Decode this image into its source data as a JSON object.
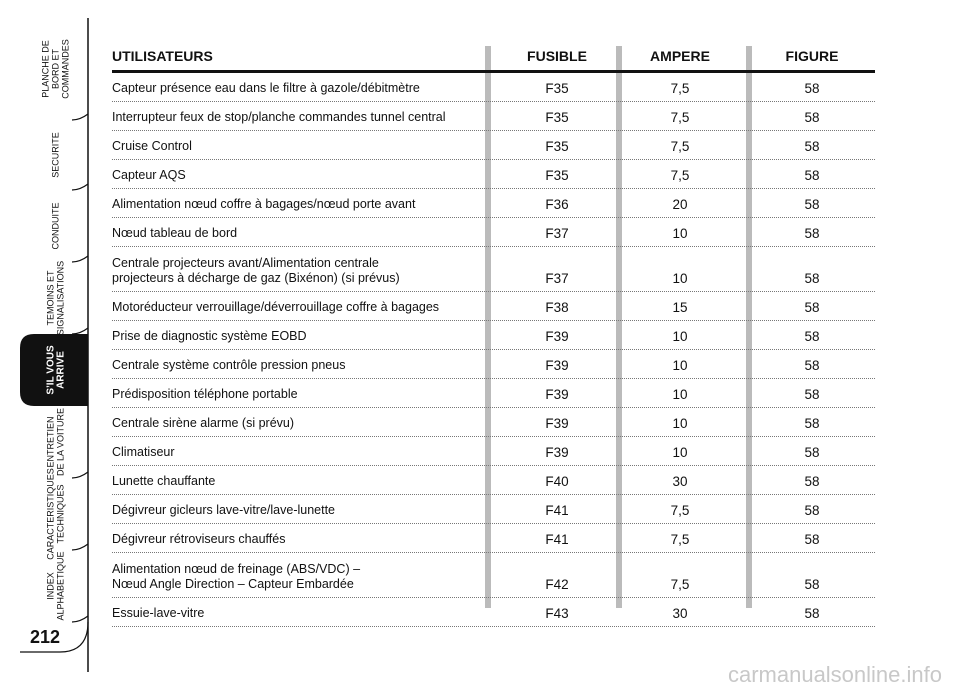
{
  "sidebar": {
    "tabs": [
      [
        "PLANCHE DE",
        "BORD ET",
        "COMMANDES"
      ],
      [
        "SECURITE"
      ],
      [
        "CONDUITE"
      ],
      [
        "TEMOINS ET",
        "SIGNALISATIONS"
      ],
      [
        "S’IL VOUS",
        "ARRIVE"
      ],
      [
        "ENTRETIEN",
        "DE LA VOITURE"
      ],
      [
        "CARACTERISTIQUES",
        "TECHNIQUES"
      ],
      [
        "INDEX",
        "ALPHABETIQUE"
      ]
    ],
    "active_tab": 4,
    "page_number": "212"
  },
  "table": {
    "headers": [
      "UTILISATEURS",
      "FUSIBLE",
      "AMPERE",
      "FIGURE"
    ],
    "rows": [
      [
        "Capteur présence eau dans le filtre à gazole/débitmètre",
        "F35",
        "7,5",
        "58"
      ],
      [
        "Interrupteur feux de stop/planche commandes tunnel central",
        "F35",
        "7,5",
        "58"
      ],
      [
        "Cruise Control",
        "F35",
        "7,5",
        "58"
      ],
      [
        "Capteur AQS",
        "F35",
        "7,5",
        "58"
      ],
      [
        "Alimentation nœud coffre à bagages/nœud porte avant",
        "F36",
        "20",
        "58"
      ],
      [
        "Nœud tableau de bord",
        "F37",
        "10",
        "58"
      ],
      [
        "Centrale projecteurs avant/Alimentation centrale\nprojecteurs à décharge de gaz (Bixénon) (si prévus)",
        "F37",
        "10",
        "58"
      ],
      [
        "Motoréducteur verrouillage/déverrouillage coffre à bagages",
        "F38",
        "15",
        "58"
      ],
      [
        "Prise de diagnostic système EOBD",
        "F39",
        "10",
        "58"
      ],
      [
        "Centrale système contrôle pression pneus",
        "F39",
        "10",
        "58"
      ],
      [
        "Prédisposition téléphone portable",
        "F39",
        "10",
        "58"
      ],
      [
        "Centrale sirène alarme (si prévu)",
        "F39",
        "10",
        "58"
      ],
      [
        "Climatiseur",
        "F39",
        "10",
        "58"
      ],
      [
        "Lunette chauffante",
        "F40",
        "30",
        "58"
      ],
      [
        "Dégivreur gicleurs lave-vitre/lave-lunette",
        "F41",
        "7,5",
        "58"
      ],
      [
        "Dégivreur rétroviseurs chauffés",
        "F41",
        "7,5",
        "58"
      ],
      [
        "Alimentation nœud de freinage (ABS/VDC) –\nNœud Angle Direction – Capteur Embardée",
        "F42",
        "7,5",
        "58"
      ],
      [
        "Essuie-lave-vitre",
        "F43",
        "30",
        "58"
      ]
    ]
  },
  "watermark": "carmanualsonline.info"
}
